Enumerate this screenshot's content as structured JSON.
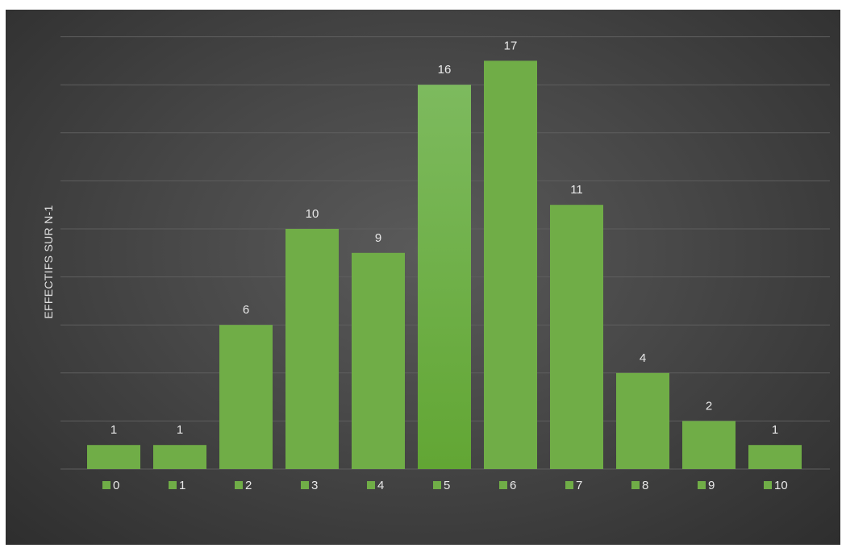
{
  "chart_data": {
    "type": "bar",
    "categories": [
      "0",
      "1",
      "2",
      "3",
      "4",
      "5",
      "6",
      "7",
      "8",
      "9",
      "10"
    ],
    "values": [
      1,
      1,
      6,
      10,
      9,
      16,
      17,
      11,
      4,
      2,
      1
    ],
    "title": "",
    "xlabel": "",
    "ylabel": "EFFECTIFS SUR N-1",
    "ylim": [
      0,
      18
    ],
    "grid": true,
    "legend": "bottom",
    "legend_entries": [
      "0",
      "1",
      "2",
      "3",
      "4",
      "5",
      "6",
      "7",
      "8",
      "9",
      "10"
    ],
    "colors": {
      "bar": "#70ad47",
      "bar_highlight": "#66a838",
      "background": "#404040",
      "gridline": "#5e5e5e",
      "text": "#e8e8e8"
    }
  }
}
